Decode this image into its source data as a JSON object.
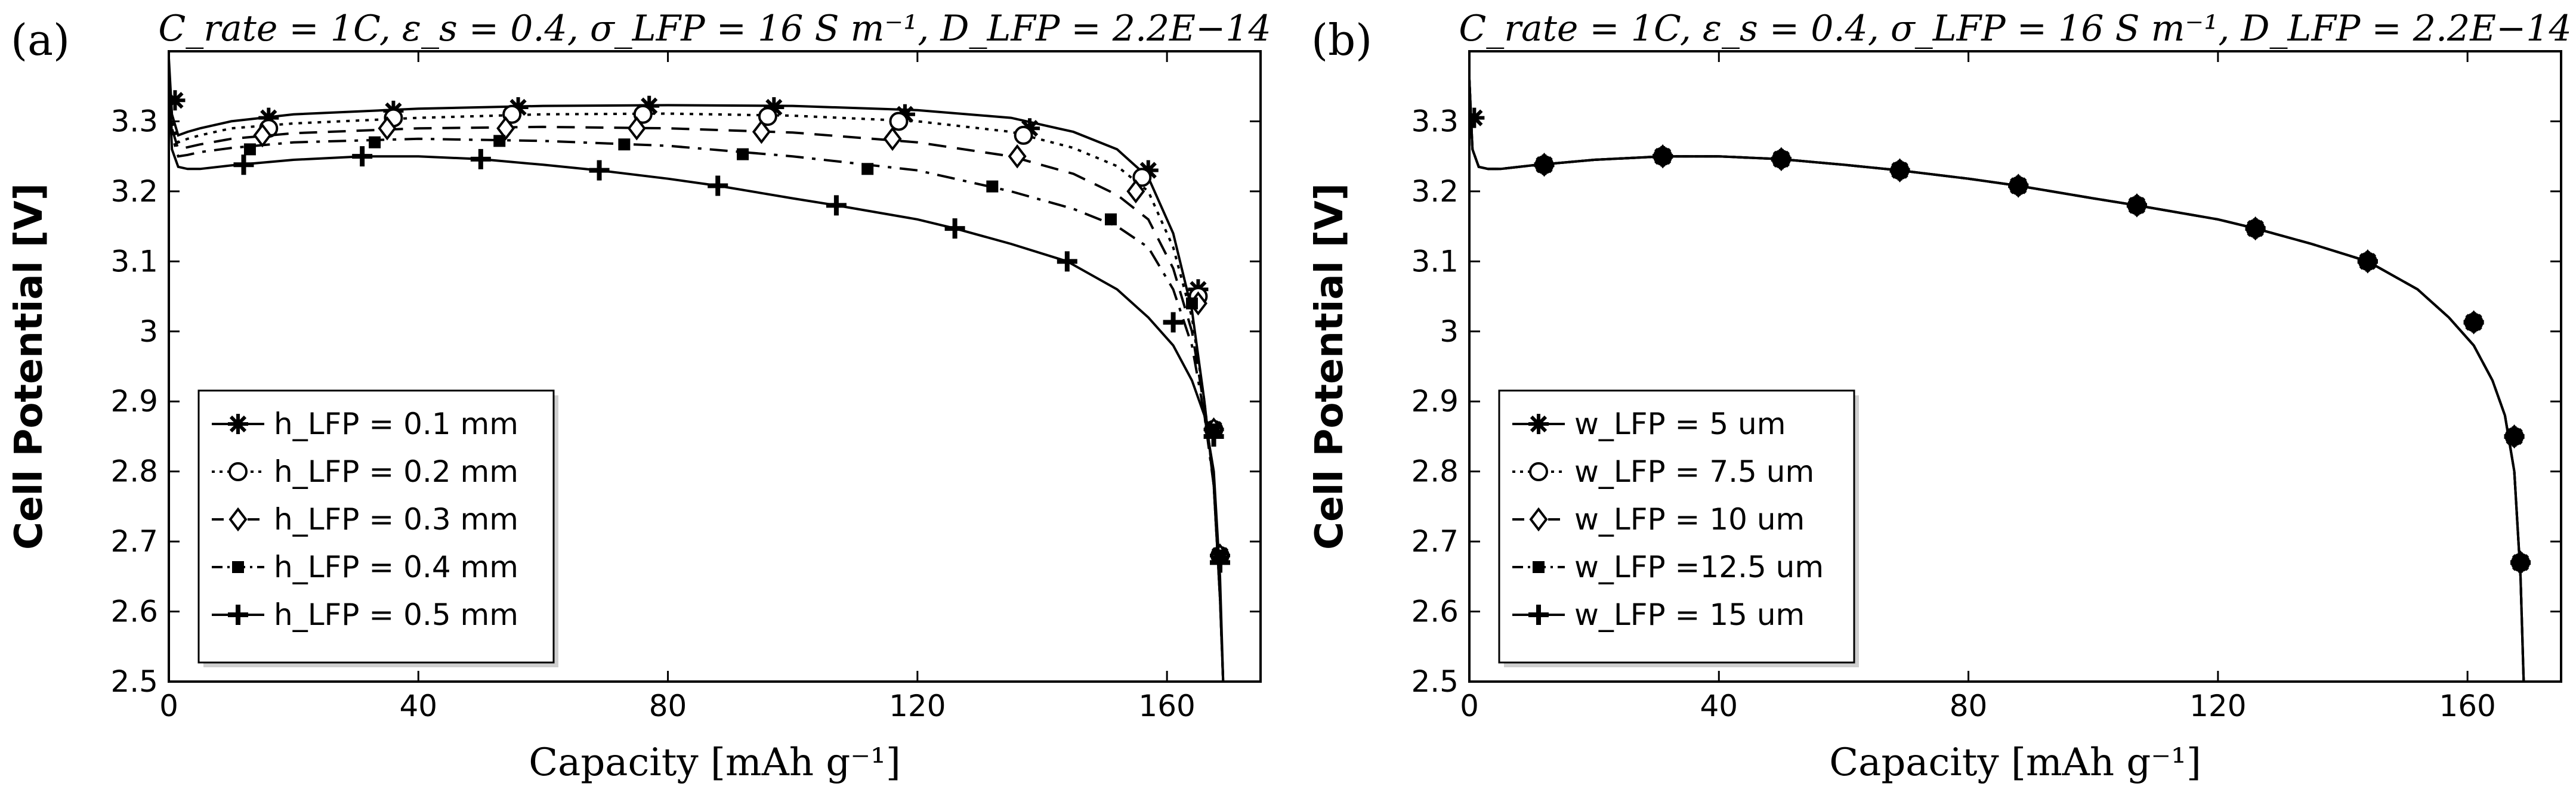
{
  "chart_data": [
    {
      "type": "line",
      "panel_label": "(a)",
      "title": "C_rate = 1C, ε_s = 0.4, σ_LFP = 16 S m⁻¹, D_LFP = 2.2E−14",
      "xlabel": "Capacity [mAh g⁻¹]",
      "ylabel": "Cell Potential [V]",
      "xlim": [
        0,
        175
      ],
      "ylim": [
        2.5,
        3.4
      ],
      "xticks": [
        "0",
        "40",
        "80",
        "120",
        "160"
      ],
      "xtick_values": [
        0,
        40,
        80,
        120,
        160
      ],
      "yticks": [
        "2.5",
        "2.6",
        "2.7",
        "2.8",
        "2.9",
        "3",
        "3.1",
        "3.2",
        "3.3"
      ],
      "ytick_values": [
        2.5,
        2.6,
        2.7,
        2.8,
        2.9,
        3.0,
        3.1,
        3.2,
        3.3
      ],
      "legend_position": "bottom-left",
      "series": [
        {
          "name": "h_LFP = 0.1 mm",
          "dash": "solid",
          "marker": "asterisk",
          "x": [
            0,
            0.5,
            1.5,
            3,
            5,
            10,
            20,
            40,
            60,
            80,
            100,
            120,
            135,
            145,
            152,
            157,
            161,
            164,
            166,
            167.5,
            168.5,
            169
          ],
          "y": [
            3.39,
            3.31,
            3.28,
            3.285,
            3.29,
            3.3,
            3.31,
            3.318,
            3.322,
            3.323,
            3.322,
            3.316,
            3.305,
            3.285,
            3.26,
            3.22,
            3.14,
            3.03,
            2.9,
            2.78,
            2.62,
            2.5
          ],
          "markers_x": [
            1,
            16,
            36,
            56,
            77,
            97,
            118,
            138,
            157,
            165,
            167.5,
            168.5
          ],
          "markers_y": [
            3.33,
            3.305,
            3.315,
            3.32,
            3.322,
            3.32,
            3.31,
            3.29,
            3.23,
            3.06,
            2.86,
            2.68
          ]
        },
        {
          "name": "h_LFP = 0.2 mm",
          "dash": "dotted",
          "marker": "circle",
          "x": [
            0,
            0.5,
            1.5,
            3,
            5,
            10,
            20,
            40,
            60,
            80,
            100,
            120,
            135,
            145,
            152,
            157,
            161,
            164,
            166,
            167.5,
            168.5,
            169
          ],
          "y": [
            3.38,
            3.3,
            3.27,
            3.275,
            3.28,
            3.29,
            3.297,
            3.305,
            3.31,
            3.311,
            3.308,
            3.3,
            3.285,
            3.262,
            3.236,
            3.2,
            3.12,
            3.02,
            2.9,
            2.78,
            2.62,
            2.5
          ],
          "markers_x": [
            16,
            36,
            55,
            76,
            96,
            117,
            137,
            156,
            165,
            167.5,
            168.5
          ],
          "markers_y": [
            3.29,
            3.305,
            3.31,
            3.31,
            3.307,
            3.3,
            3.28,
            3.22,
            3.05,
            2.86,
            2.68
          ]
        },
        {
          "name": "h_LFP = 0.3 mm",
          "dash": "dashed",
          "marker": "diamond",
          "x": [
            0,
            0.5,
            1.5,
            3,
            5,
            10,
            20,
            40,
            60,
            80,
            100,
            120,
            135,
            145,
            152,
            157,
            161,
            164,
            166,
            167.5,
            168.5,
            169
          ],
          "y": [
            3.37,
            3.29,
            3.26,
            3.263,
            3.267,
            3.275,
            3.283,
            3.29,
            3.292,
            3.29,
            3.284,
            3.27,
            3.25,
            3.225,
            3.195,
            3.16,
            3.09,
            3.0,
            2.89,
            2.78,
            2.62,
            2.5
          ],
          "markers_x": [
            15,
            35,
            54,
            75,
            95,
            116,
            136,
            155,
            165,
            167.5,
            168.5
          ],
          "markers_y": [
            3.28,
            3.29,
            3.29,
            3.29,
            3.285,
            3.275,
            3.25,
            3.2,
            3.04,
            2.86,
            2.68
          ]
        },
        {
          "name": "h_LFP = 0.4 mm",
          "dash": "dashdot",
          "marker": "square",
          "x": [
            0,
            0.5,
            1.5,
            3,
            5,
            10,
            20,
            40,
            60,
            80,
            100,
            120,
            135,
            145,
            152,
            157,
            161,
            164,
            166,
            167.5,
            168.5,
            169
          ],
          "y": [
            3.36,
            3.28,
            3.25,
            3.252,
            3.256,
            3.262,
            3.27,
            3.275,
            3.272,
            3.265,
            3.25,
            3.23,
            3.2,
            3.175,
            3.15,
            3.12,
            3.06,
            2.98,
            2.88,
            2.78,
            2.62,
            2.5
          ],
          "markers_x": [
            13,
            33,
            53,
            73,
            92,
            112,
            132,
            151,
            164,
            167.5,
            168.5
          ],
          "markers_y": [
            3.26,
            3.27,
            3.272,
            3.267,
            3.253,
            3.232,
            3.207,
            3.16,
            3.04,
            2.86,
            2.68
          ]
        },
        {
          "name": "h_LFP = 0.5 mm",
          "dash": "solid",
          "marker": "plus",
          "x": [
            0,
            0.5,
            1.5,
            3,
            5,
            10,
            20,
            31,
            40,
            50,
            60,
            69,
            80,
            88,
            100,
            107,
            120,
            126,
            135,
            144,
            152,
            157,
            161,
            164,
            166,
            167.5,
            168.5,
            169
          ],
          "y": [
            3.36,
            3.26,
            3.235,
            3.232,
            3.232,
            3.237,
            3.245,
            3.25,
            3.25,
            3.246,
            3.238,
            3.23,
            3.218,
            3.208,
            3.19,
            3.18,
            3.16,
            3.147,
            3.125,
            3.1,
            3.06,
            3.02,
            2.98,
            2.93,
            2.88,
            2.8,
            2.65,
            2.5
          ],
          "markers_x": [
            12,
            31,
            50,
            69,
            88,
            107,
            126,
            144,
            161,
            167.5,
            168.5
          ],
          "markers_y": [
            3.238,
            3.25,
            3.246,
            3.23,
            3.208,
            3.18,
            3.147,
            3.1,
            3.013,
            2.85,
            2.67
          ]
        }
      ]
    },
    {
      "type": "line",
      "panel_label": "(b)",
      "title": "C_rate = 1C, ε_s = 0.4, σ_LFP = 16 S m⁻¹, D_LFP = 2.2E−14",
      "xlabel": "Capacity [mAh g⁻¹]",
      "ylabel": "Cell Potential [V]",
      "xlim": [
        0,
        175
      ],
      "ylim": [
        2.5,
        3.4
      ],
      "xticks": [
        "0",
        "40",
        "80",
        "120",
        "160"
      ],
      "xtick_values": [
        0,
        40,
        80,
        120,
        160
      ],
      "yticks": [
        "2.5",
        "2.6",
        "2.7",
        "2.8",
        "2.9",
        "3",
        "3.1",
        "3.2",
        "3.3"
      ],
      "ytick_values": [
        2.5,
        2.6,
        2.7,
        2.8,
        2.9,
        3.0,
        3.1,
        3.2,
        3.3
      ],
      "legend_position": "bottom-left",
      "series": [
        {
          "name": "w_LFP = 5 um",
          "dash": "solid",
          "marker": "asterisk",
          "x": [
            0,
            0.5,
            1.5,
            3,
            5,
            10,
            20,
            31,
            40,
            50,
            60,
            69,
            80,
            88,
            100,
            107,
            120,
            126,
            135,
            144,
            152,
            157,
            161,
            164,
            166,
            167.5,
            168.5,
            169
          ],
          "y": [
            3.36,
            3.26,
            3.235,
            3.232,
            3.232,
            3.237,
            3.245,
            3.25,
            3.25,
            3.246,
            3.238,
            3.23,
            3.218,
            3.208,
            3.19,
            3.18,
            3.16,
            3.147,
            3.125,
            3.1,
            3.06,
            3.02,
            2.98,
            2.93,
            2.88,
            2.8,
            2.65,
            2.5
          ],
          "markers_x": [
            0.8,
            12,
            31,
            50,
            69,
            88,
            107,
            126,
            144,
            161,
            167.5,
            168.5
          ],
          "markers_y": [
            3.305,
            3.238,
            3.25,
            3.246,
            3.23,
            3.208,
            3.18,
            3.147,
            3.1,
            3.013,
            2.85,
            2.67
          ]
        },
        {
          "name": "w_LFP = 7.5 um",
          "dash": "dotted",
          "marker": "circle",
          "x": [
            0,
            0.5,
            1.5,
            3,
            5,
            10,
            20,
            31,
            40,
            50,
            60,
            69,
            80,
            88,
            100,
            107,
            120,
            126,
            135,
            144,
            152,
            157,
            161,
            164,
            166,
            167.5,
            168.5,
            169
          ],
          "y": [
            3.36,
            3.26,
            3.235,
            3.232,
            3.232,
            3.237,
            3.245,
            3.25,
            3.25,
            3.246,
            3.238,
            3.23,
            3.218,
            3.208,
            3.19,
            3.18,
            3.16,
            3.147,
            3.125,
            3.1,
            3.06,
            3.02,
            2.98,
            2.93,
            2.88,
            2.8,
            2.65,
            2.5
          ],
          "markers_x": [
            12,
            31,
            50,
            69,
            88,
            107,
            126,
            144,
            161,
            167.5,
            168.5
          ],
          "markers_y": [
            3.238,
            3.25,
            3.246,
            3.23,
            3.208,
            3.18,
            3.147,
            3.1,
            3.013,
            2.85,
            2.67
          ]
        },
        {
          "name": "w_LFP = 10 um",
          "dash": "dashed",
          "marker": "diamond",
          "x": [
            0,
            0.5,
            1.5,
            3,
            5,
            10,
            20,
            31,
            40,
            50,
            60,
            69,
            80,
            88,
            100,
            107,
            120,
            126,
            135,
            144,
            152,
            157,
            161,
            164,
            166,
            167.5,
            168.5,
            169
          ],
          "y": [
            3.36,
            3.26,
            3.235,
            3.232,
            3.232,
            3.237,
            3.245,
            3.25,
            3.25,
            3.246,
            3.238,
            3.23,
            3.218,
            3.208,
            3.19,
            3.18,
            3.16,
            3.147,
            3.125,
            3.1,
            3.06,
            3.02,
            2.98,
            2.93,
            2.88,
            2.8,
            2.65,
            2.5
          ],
          "markers_x": [
            12,
            31,
            50,
            69,
            88,
            107,
            126,
            144,
            161,
            167.5,
            168.5
          ],
          "markers_y": [
            3.238,
            3.25,
            3.246,
            3.23,
            3.208,
            3.18,
            3.147,
            3.1,
            3.013,
            2.85,
            2.67
          ]
        },
        {
          "name": "w_LFP =12.5 um",
          "dash": "dashdot",
          "marker": "square",
          "x": [
            0,
            0.5,
            1.5,
            3,
            5,
            10,
            20,
            31,
            40,
            50,
            60,
            69,
            80,
            88,
            100,
            107,
            120,
            126,
            135,
            144,
            152,
            157,
            161,
            164,
            166,
            167.5,
            168.5,
            169
          ],
          "y": [
            3.36,
            3.26,
            3.235,
            3.232,
            3.232,
            3.237,
            3.245,
            3.25,
            3.25,
            3.246,
            3.238,
            3.23,
            3.218,
            3.208,
            3.19,
            3.18,
            3.16,
            3.147,
            3.125,
            3.1,
            3.06,
            3.02,
            2.98,
            2.93,
            2.88,
            2.8,
            2.65,
            2.5
          ],
          "markers_x": [
            12,
            31,
            50,
            69,
            88,
            107,
            126,
            144,
            161,
            167.5,
            168.5
          ],
          "markers_y": [
            3.238,
            3.25,
            3.246,
            3.23,
            3.208,
            3.18,
            3.147,
            3.1,
            3.013,
            2.85,
            2.67
          ]
        },
        {
          "name": "w_LFP = 15 um",
          "dash": "solid",
          "marker": "plus",
          "x": [
            0,
            0.5,
            1.5,
            3,
            5,
            10,
            20,
            31,
            40,
            50,
            60,
            69,
            80,
            88,
            100,
            107,
            120,
            126,
            135,
            144,
            152,
            157,
            161,
            164,
            166,
            167.5,
            168.5,
            169
          ],
          "y": [
            3.36,
            3.26,
            3.235,
            3.232,
            3.232,
            3.237,
            3.245,
            3.25,
            3.25,
            3.246,
            3.238,
            3.23,
            3.218,
            3.208,
            3.19,
            3.18,
            3.16,
            3.147,
            3.125,
            3.1,
            3.06,
            3.02,
            2.98,
            2.93,
            2.88,
            2.8,
            2.65,
            2.5
          ],
          "markers_x": [
            12,
            31,
            50,
            69,
            88,
            107,
            126,
            144,
            161,
            167.5,
            168.5
          ],
          "markers_y": [
            3.238,
            3.25,
            3.246,
            3.23,
            3.208,
            3.18,
            3.147,
            3.1,
            3.013,
            2.85,
            2.67
          ]
        }
      ]
    }
  ]
}
